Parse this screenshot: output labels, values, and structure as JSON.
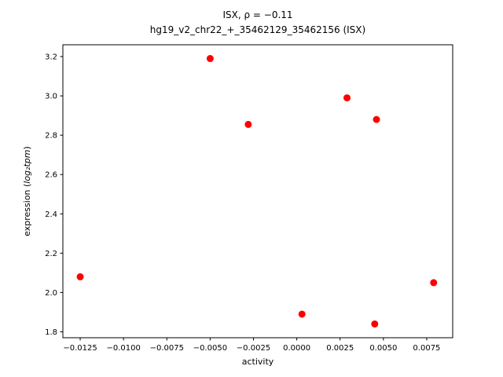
{
  "chart_data": {
    "type": "scatter",
    "title_line1": "ISX, ρ = −0.11",
    "title_line2": "hg19_v2_chr22_+_35462129_35462156 (ISX)",
    "xlabel": "activity",
    "ylabel": "expression (log₂tpm)",
    "ylabel_parts": [
      {
        "text": "expression (",
        "italic": false
      },
      {
        "text": "log₂tpm",
        "italic": true
      },
      {
        "text": ")",
        "italic": false
      }
    ],
    "marker_color": "#ff0000",
    "axis_color": "#000000",
    "xlim": [
      -0.0135,
      0.009
    ],
    "ylim": [
      1.77,
      3.26
    ],
    "x_ticks": {
      "values": [
        -0.0125,
        -0.01,
        -0.0075,
        -0.005,
        -0.0025,
        0.0,
        0.0025,
        0.005,
        0.0075
      ],
      "labels": [
        "−0.0125",
        "−0.0100",
        "−0.0075",
        "−0.0050",
        "−0.0025",
        "0.0000",
        "0.0025",
        "0.0050",
        "0.0075"
      ]
    },
    "y_ticks": {
      "values": [
        1.8,
        2.0,
        2.2,
        2.4,
        2.6,
        2.8,
        3.0,
        3.2
      ],
      "labels": [
        "1.8",
        "2.0",
        "2.2",
        "2.4",
        "2.6",
        "2.8",
        "3.0",
        "3.2"
      ]
    },
    "points": [
      {
        "x": -0.0125,
        "y": 2.08
      },
      {
        "x": -0.005,
        "y": 3.19
      },
      {
        "x": -0.0028,
        "y": 2.855
      },
      {
        "x": 0.0003,
        "y": 1.89
      },
      {
        "x": 0.0029,
        "y": 2.99
      },
      {
        "x": 0.0046,
        "y": 2.88
      },
      {
        "x": 0.0045,
        "y": 1.84
      },
      {
        "x": 0.0079,
        "y": 2.05
      }
    ]
  }
}
